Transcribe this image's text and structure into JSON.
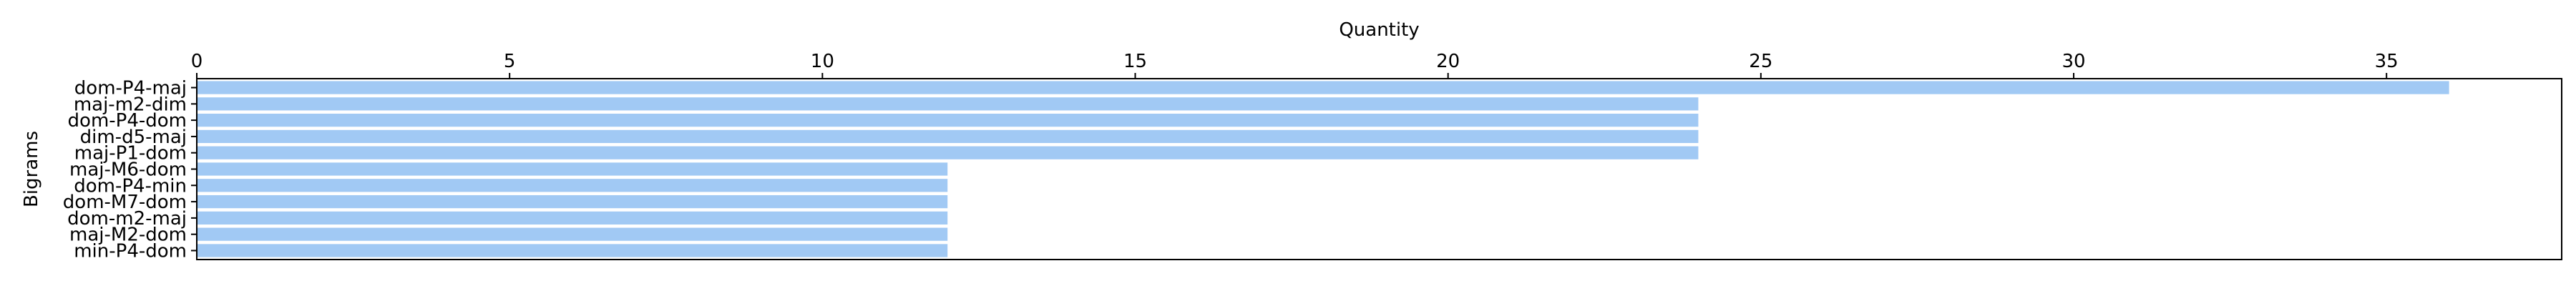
{
  "chart_data": {
    "type": "bar",
    "orientation": "horizontal",
    "title": "",
    "xlabel": "Quantity",
    "ylabel": "Bigrams",
    "x_axis_position": "top",
    "xlim": [
      0,
      37.8
    ],
    "xticks": [
      0,
      5,
      10,
      15,
      20,
      25,
      30,
      35
    ],
    "grid": false,
    "bar_color": "#a1c9f4",
    "categories": [
      "dom-P4-maj",
      "maj-m2-dim",
      "dom-P4-dom",
      "dim-d5-maj",
      "maj-P1-dom",
      "maj-M6-dom",
      "dom-P4-min",
      "dom-M7-dom",
      "dom-m2-maj",
      "maj-M2-dom",
      "min-P4-dom"
    ],
    "values": [
      36,
      24,
      24,
      24,
      24,
      12,
      12,
      12,
      12,
      12,
      12
    ]
  }
}
